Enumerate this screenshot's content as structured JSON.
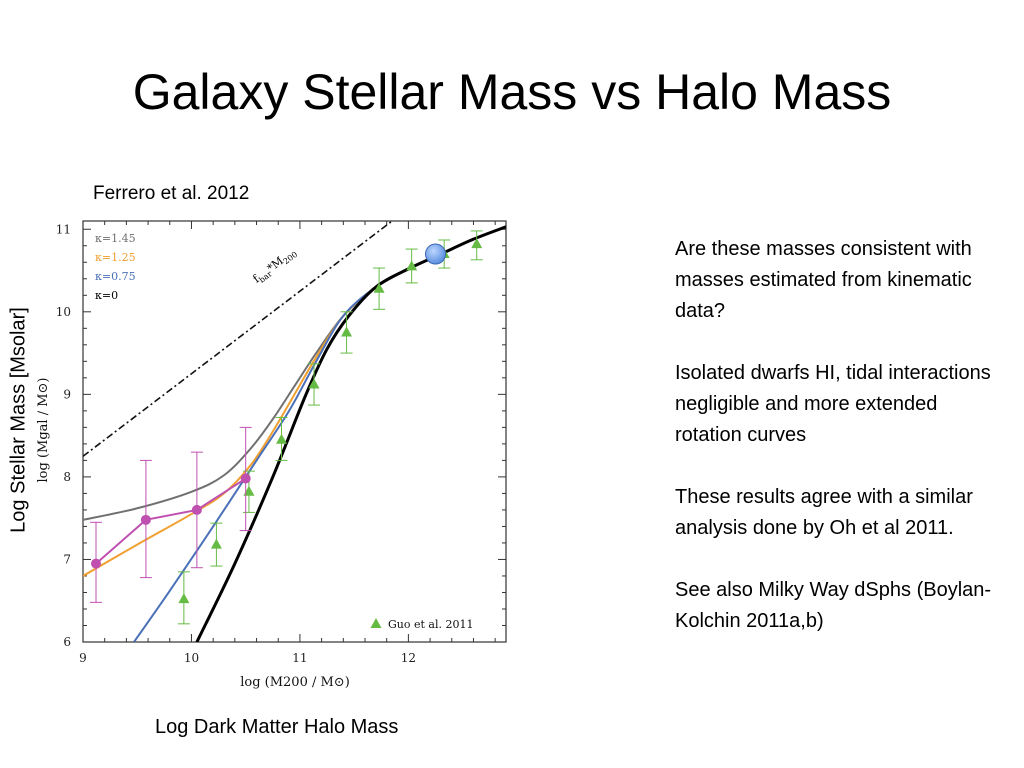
{
  "title": "Galaxy Stellar Mass vs Halo Mass",
  "citation": "Ferrero et al. 2012",
  "outer_labels": {
    "y": "Log Stellar Mass [Msolar]",
    "x": "Log Dark Matter Halo Mass"
  },
  "notes": [
    "Are these masses consistent with masses estimated from kinematic data?",
    "Isolated dwarfs HI, tidal interactions negligible  and more extended rotation curves",
    "These results agree with a similar analysis done by Oh et al 2011.",
    "See also Milky Way dSphs (Boylan-Kolchin 2011a,b)"
  ],
  "chart_data": {
    "type": "line",
    "xlabel": "log (M200 / M⊙)",
    "ylabel": "log (Mgal / M⊙)",
    "xlim": [
      9,
      12.9
    ],
    "ylim": [
      6,
      11.1
    ],
    "xticks": [
      9,
      10,
      11,
      12
    ],
    "yticks": [
      6,
      7,
      8,
      9,
      10,
      11
    ],
    "series": [
      {
        "name": "κ=1.45",
        "color": "#707070",
        "width": 2.0,
        "points": [
          [
            9.0,
            7.48
          ],
          [
            9.5,
            7.62
          ],
          [
            10.0,
            7.82
          ],
          [
            10.3,
            8.02
          ],
          [
            10.55,
            8.35
          ],
          [
            10.75,
            8.7
          ],
          [
            10.95,
            9.1
          ],
          [
            11.15,
            9.5
          ],
          [
            11.4,
            9.95
          ],
          [
            11.7,
            10.3
          ],
          [
            12.0,
            10.52
          ],
          [
            12.3,
            10.7
          ],
          [
            12.6,
            10.88
          ],
          [
            12.9,
            11.03
          ]
        ]
      },
      {
        "name": "κ=1.25",
        "color": "#f0a030",
        "width": 2.0,
        "points": [
          [
            9.0,
            6.8
          ],
          [
            9.5,
            7.18
          ],
          [
            10.0,
            7.55
          ],
          [
            10.3,
            7.8
          ],
          [
            10.55,
            8.15
          ],
          [
            10.75,
            8.55
          ],
          [
            10.95,
            9.0
          ],
          [
            11.15,
            9.45
          ],
          [
            11.4,
            9.95
          ],
          [
            11.7,
            10.3
          ],
          [
            12.0,
            10.52
          ],
          [
            12.3,
            10.7
          ],
          [
            12.6,
            10.88
          ],
          [
            12.9,
            11.03
          ]
        ]
      },
      {
        "name": "κ=0.75",
        "color": "#4a70b8",
        "width": 2.0,
        "points": [
          [
            9.47,
            6.0
          ],
          [
            9.8,
            6.62
          ],
          [
            10.2,
            7.4
          ],
          [
            10.6,
            8.2
          ],
          [
            10.9,
            8.8
          ],
          [
            11.15,
            9.4
          ],
          [
            11.4,
            9.95
          ],
          [
            11.7,
            10.3
          ],
          [
            12.0,
            10.52
          ],
          [
            12.3,
            10.7
          ],
          [
            12.6,
            10.88
          ],
          [
            12.9,
            11.03
          ]
        ]
      },
      {
        "name": "κ=0",
        "color": "#000000",
        "width": 3.0,
        "points": [
          [
            10.05,
            6.0
          ],
          [
            10.4,
            6.95
          ],
          [
            10.75,
            8.0
          ],
          [
            11.05,
            8.98
          ],
          [
            11.25,
            9.55
          ],
          [
            11.45,
            9.95
          ],
          [
            11.7,
            10.3
          ],
          [
            12.0,
            10.52
          ],
          [
            12.3,
            10.7
          ],
          [
            12.6,
            10.88
          ],
          [
            12.9,
            11.03
          ]
        ]
      }
    ],
    "baryon_line": {
      "label_main": "f",
      "label_sub1": "bar",
      "label_mid": "*M",
      "label_sub2": "200",
      "points": [
        [
          9.0,
          8.25
        ],
        [
          10.0,
          9.25
        ],
        [
          11.0,
          10.25
        ],
        [
          11.85,
          11.1
        ]
      ]
    },
    "dwarf_points": {
      "color": "#c050b0",
      "points": [
        [
          9.12,
          6.95,
          6.48,
          7.45
        ],
        [
          9.58,
          7.48,
          6.78,
          8.2
        ],
        [
          10.05,
          7.6,
          6.9,
          8.3
        ],
        [
          10.5,
          7.98,
          7.35,
          8.6
        ]
      ]
    },
    "guo_points": {
      "name": "Guo et al. 2011",
      "color": "#66bb44",
      "points": [
        [
          9.93,
          6.52,
          6.22,
          6.85
        ],
        [
          10.23,
          7.18,
          6.92,
          7.44
        ],
        [
          10.53,
          7.82,
          7.57,
          8.07
        ],
        [
          10.83,
          8.45,
          8.2,
          8.72
        ],
        [
          11.13,
          9.12,
          8.87,
          9.37
        ],
        [
          11.43,
          9.75,
          9.5,
          10.0
        ],
        [
          11.73,
          10.28,
          10.03,
          10.53
        ],
        [
          12.03,
          10.55,
          10.35,
          10.76
        ],
        [
          12.33,
          10.7,
          10.53,
          10.87
        ],
        [
          12.63,
          10.82,
          10.63,
          10.98
        ]
      ]
    },
    "highlight_point": {
      "x": 12.25,
      "y": 10.7,
      "color": "#5b8fe0"
    },
    "legend": [
      {
        "label": "κ=1.45",
        "color": "#707070"
      },
      {
        "label": "κ=1.25",
        "color": "#f0a030"
      },
      {
        "label": "κ=0.75",
        "color": "#4a70b8"
      },
      {
        "label": "κ=0",
        "color": "#000000"
      }
    ]
  }
}
